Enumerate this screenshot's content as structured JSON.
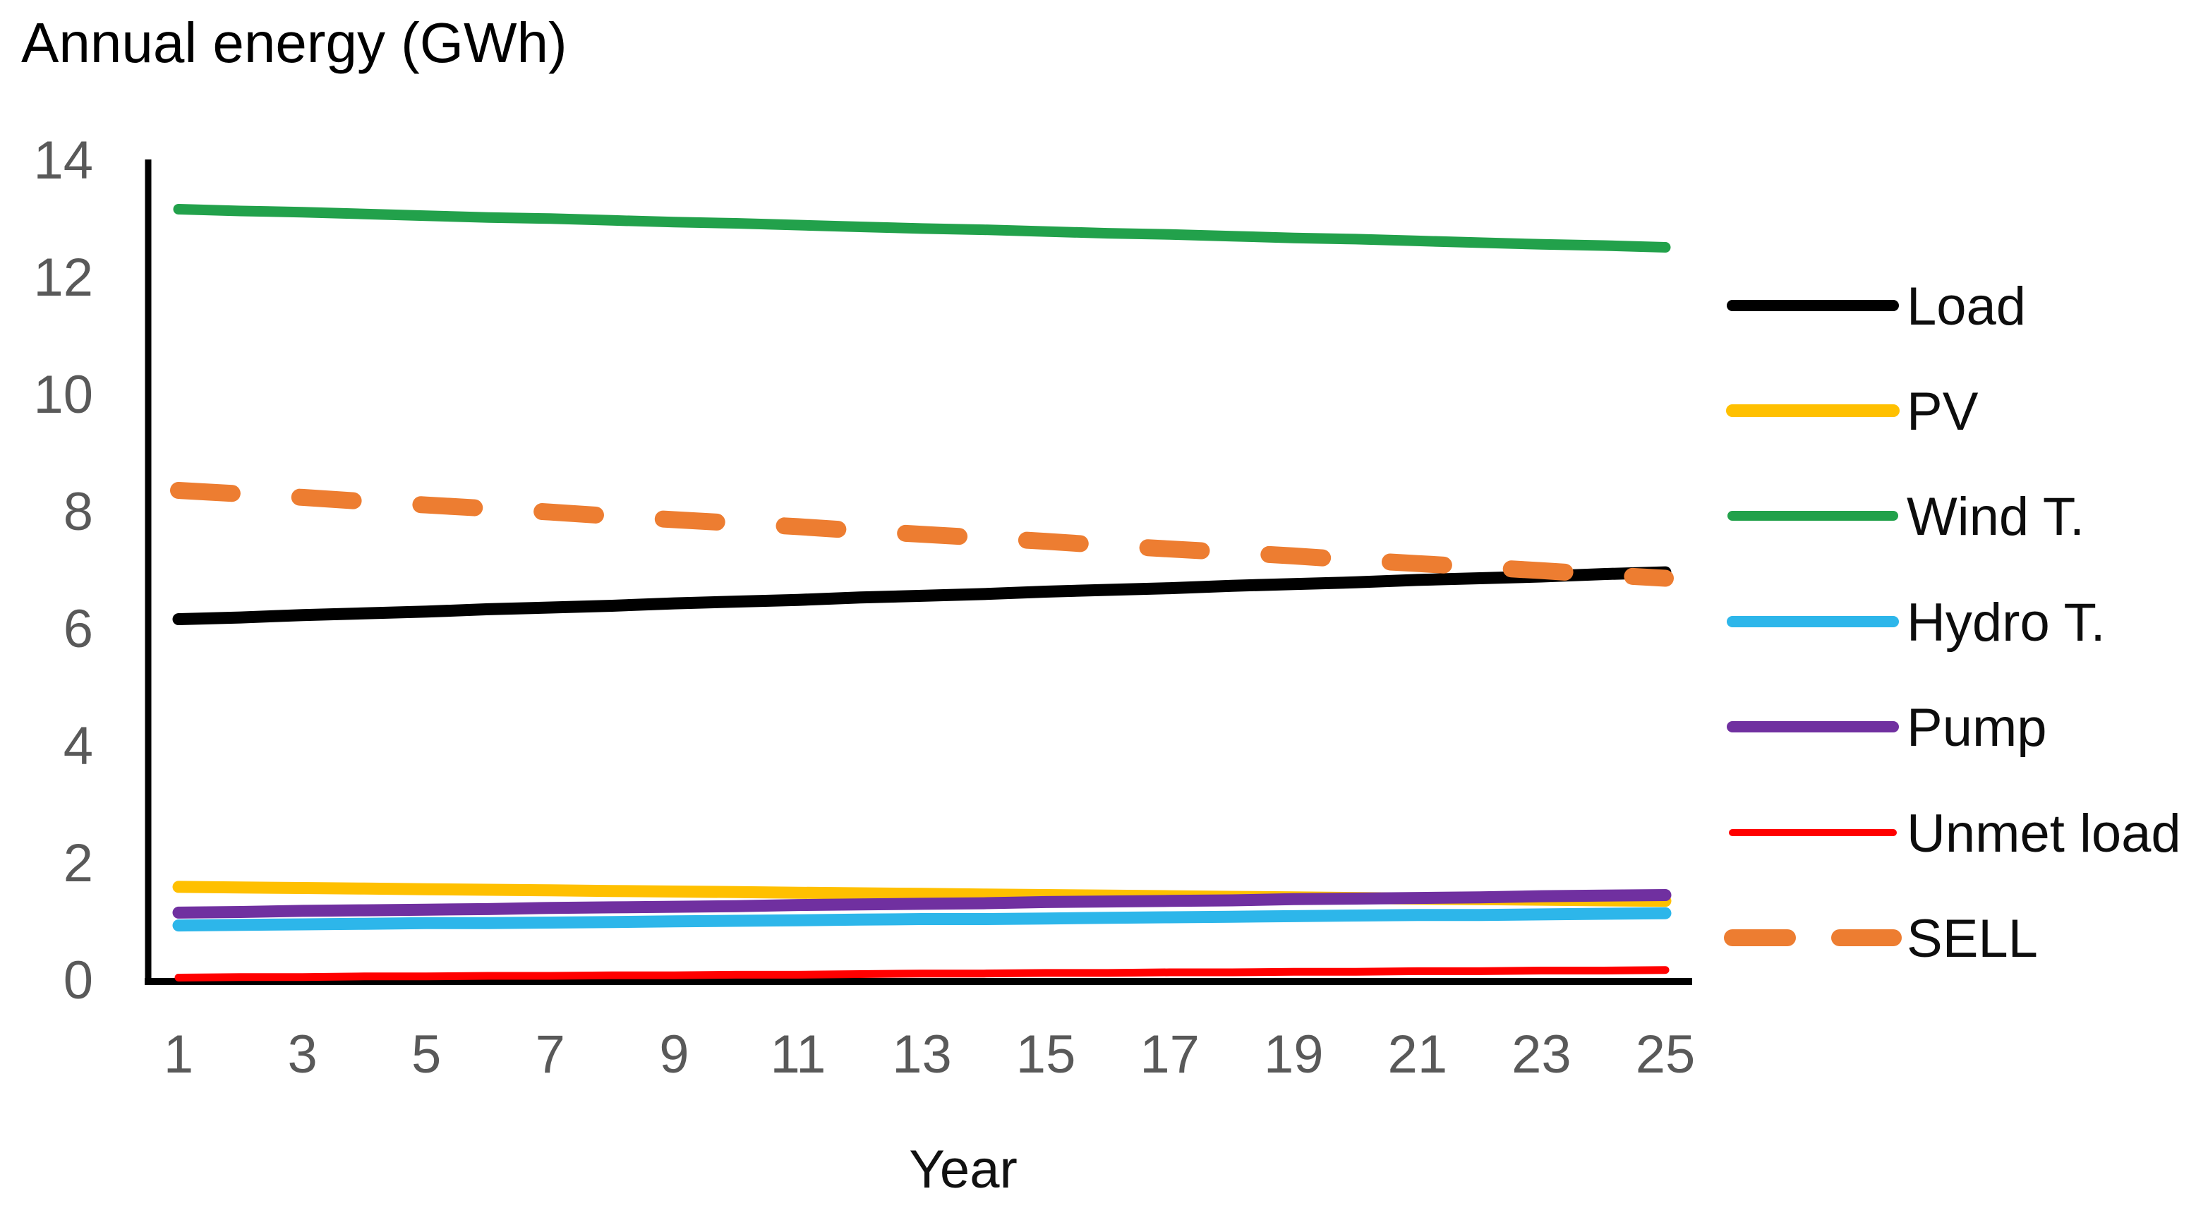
{
  "title": "Annual energy  (GWh)",
  "xlabel": "Year",
  "axis_color": "#000000",
  "tick_color": "#595959",
  "chart_data": {
    "type": "line",
    "title": "Annual energy (GWh)",
    "xlabel": "Year",
    "ylabel": "Annual energy (GWh)",
    "xlim": [
      1,
      25
    ],
    "ylim": [
      0,
      14
    ],
    "x_ticks": [
      1,
      3,
      5,
      7,
      9,
      11,
      13,
      15,
      17,
      19,
      21,
      23,
      25
    ],
    "y_ticks": [
      0,
      2,
      4,
      6,
      8,
      10,
      12,
      14
    ],
    "grid": false,
    "legend_position": "right",
    "x": [
      1,
      2,
      3,
      4,
      5,
      6,
      7,
      8,
      9,
      10,
      11,
      12,
      13,
      14,
      15,
      16,
      17,
      18,
      19,
      20,
      21,
      22,
      23,
      24,
      25
    ],
    "series": [
      {
        "name": "Load",
        "color": "#000000",
        "style": "solid",
        "values": [
          6.15,
          6.18,
          6.22,
          6.25,
          6.28,
          6.32,
          6.35,
          6.38,
          6.42,
          6.45,
          6.48,
          6.52,
          6.55,
          6.58,
          6.62,
          6.65,
          6.68,
          6.72,
          6.75,
          6.78,
          6.82,
          6.85,
          6.88,
          6.92,
          6.95
        ]
      },
      {
        "name": "PV",
        "color": "#FFC000",
        "style": "solid",
        "values": [
          1.58,
          1.57,
          1.56,
          1.55,
          1.54,
          1.53,
          1.52,
          1.51,
          1.5,
          1.49,
          1.48,
          1.47,
          1.46,
          1.45,
          1.44,
          1.43,
          1.42,
          1.41,
          1.4,
          1.39,
          1.38,
          1.37,
          1.36,
          1.35,
          1.34
        ]
      },
      {
        "name": "Wind T.",
        "color": "#22A14B",
        "style": "solid",
        "values": [
          13.15,
          13.12,
          13.1,
          13.07,
          13.04,
          13.01,
          12.99,
          12.96,
          12.93,
          12.91,
          12.88,
          12.85,
          12.82,
          12.8,
          12.77,
          12.74,
          12.72,
          12.69,
          12.66,
          12.64,
          12.61,
          12.58,
          12.55,
          12.53,
          12.5
        ]
      },
      {
        "name": "Hydro T.",
        "color": "#2DB6EA",
        "style": "solid",
        "values": [
          0.92,
          0.93,
          0.94,
          0.95,
          0.96,
          0.96,
          0.97,
          0.98,
          0.99,
          1.0,
          1.01,
          1.02,
          1.03,
          1.03,
          1.04,
          1.05,
          1.06,
          1.07,
          1.08,
          1.09,
          1.1,
          1.1,
          1.11,
          1.12,
          1.13
        ]
      },
      {
        "name": "Pump",
        "color": "#7030A0",
        "style": "solid",
        "values": [
          1.14,
          1.15,
          1.17,
          1.18,
          1.19,
          1.2,
          1.22,
          1.23,
          1.24,
          1.25,
          1.27,
          1.28,
          1.29,
          1.3,
          1.32,
          1.33,
          1.34,
          1.35,
          1.37,
          1.38,
          1.39,
          1.4,
          1.42,
          1.43,
          1.44
        ]
      },
      {
        "name": "Unmet load",
        "color": "#FF0000",
        "style": "solid",
        "values": [
          0.03,
          0.04,
          0.04,
          0.05,
          0.05,
          0.06,
          0.06,
          0.07,
          0.07,
          0.08,
          0.08,
          0.09,
          0.1,
          0.1,
          0.11,
          0.11,
          0.12,
          0.12,
          0.13,
          0.13,
          0.14,
          0.14,
          0.15,
          0.15,
          0.16
        ]
      },
      {
        "name": "SELL",
        "color": "#ED7D31",
        "style": "dashed",
        "values": [
          8.35,
          8.29,
          8.23,
          8.16,
          8.1,
          8.04,
          7.98,
          7.91,
          7.85,
          7.79,
          7.73,
          7.66,
          7.6,
          7.54,
          7.48,
          7.41,
          7.35,
          7.29,
          7.23,
          7.16,
          7.1,
          7.04,
          6.98,
          6.91,
          6.85
        ]
      }
    ]
  },
  "legend": {
    "items": [
      {
        "label": "Load",
        "color": "#000000",
        "style": "solid"
      },
      {
        "label": "PV",
        "color": "#FFC000",
        "style": "solid"
      },
      {
        "label": "Wind T.",
        "color": "#22A14B",
        "style": "solid"
      },
      {
        "label": "Hydro T.",
        "color": "#2DB6EA",
        "style": "solid"
      },
      {
        "label": "Pump",
        "color": "#7030A0",
        "style": "solid"
      },
      {
        "label": "Unmet load",
        "color": "#FF0000",
        "style": "solid"
      },
      {
        "label": "SELL",
        "color": "#ED7D31",
        "style": "dashed"
      }
    ]
  }
}
